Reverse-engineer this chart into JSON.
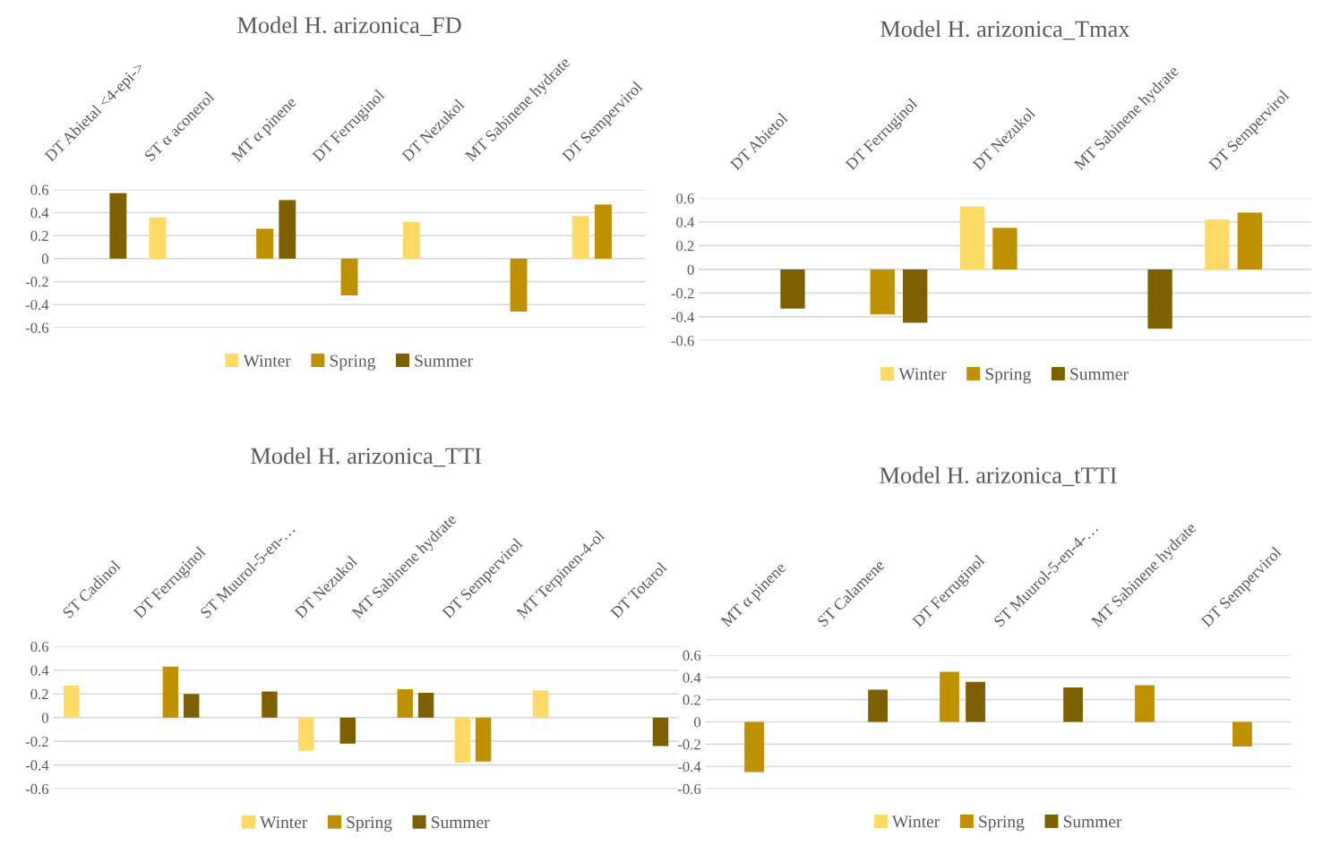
{
  "chart_data": [
    {
      "type": "bar",
      "title": "Model H. arizonica_FD",
      "categories": [
        "DT Abietal <4-epi->",
        "ST α aconerol",
        "MT α pinene",
        "DT Ferruginol",
        "DT Nezukol",
        "MT Sabinene hydrate",
        "DT Sempervirol"
      ],
      "series": [
        {
          "name": "Winter",
          "color": "#ffd966",
          "values": [
            null,
            0.36,
            null,
            null,
            0.32,
            null,
            0.37
          ]
        },
        {
          "name": "Spring",
          "color": "#bf9000",
          "values": [
            null,
            null,
            0.26,
            -0.32,
            null,
            -0.46,
            0.47
          ]
        },
        {
          "name": "Summer",
          "color": "#7f6000",
          "values": [
            0.57,
            null,
            0.51,
            null,
            null,
            null,
            null
          ]
        }
      ],
      "ylim": [
        -0.6,
        0.6
      ],
      "yticks": [
        -0.6,
        -0.4,
        -0.2,
        0,
        0.2,
        0.4,
        0.6
      ],
      "grid": "y",
      "legend": "bottom"
    },
    {
      "type": "bar",
      "title": "Model H. arizonica_Tmax",
      "categories": [
        "DT Abietol",
        "DT Ferruginol",
        "DT Nezukol",
        "MT Sabinene hydrate",
        "DT Sempervirol"
      ],
      "series": [
        {
          "name": "Winter",
          "color": "#ffd966",
          "values": [
            null,
            null,
            0.53,
            null,
            0.42
          ]
        },
        {
          "name": "Spring",
          "color": "#bf9000",
          "values": [
            null,
            -0.38,
            0.35,
            null,
            0.48
          ]
        },
        {
          "name": "Summer",
          "color": "#7f6000",
          "values": [
            -0.33,
            -0.45,
            null,
            -0.5,
            null
          ]
        }
      ],
      "ylim": [
        -0.6,
        0.6
      ],
      "yticks": [
        -0.6,
        -0.4,
        -0.2,
        0,
        0.2,
        0.4,
        0.6
      ],
      "grid": "y",
      "legend": "bottom"
    },
    {
      "type": "bar",
      "title": "Model H. arizonica_TTI",
      "categories": [
        "ST Cadinol",
        "DT Ferruginol",
        "ST Muurol-5-en-…",
        "DT Nezukol",
        "MT Sabinene hydrate",
        "DT Sempervirol",
        "MT Terpinen-4-ol",
        "DT Totarol"
      ],
      "series": [
        {
          "name": "Winter",
          "color": "#ffd966",
          "values": [
            0.27,
            null,
            null,
            -0.28,
            null,
            -0.38,
            0.23,
            null
          ]
        },
        {
          "name": "Spring",
          "color": "#bf9000",
          "values": [
            null,
            0.43,
            null,
            null,
            0.24,
            -0.37,
            null,
            null
          ]
        },
        {
          "name": "Summer",
          "color": "#7f6000",
          "values": [
            null,
            0.2,
            0.22,
            -0.22,
            0.21,
            null,
            null,
            -0.24
          ]
        }
      ],
      "ylim": [
        -0.6,
        0.6
      ],
      "yticks": [
        -0.6,
        -0.4,
        -0.2,
        0,
        0.2,
        0.4,
        0.6
      ],
      "grid": "y",
      "legend": "bottom"
    },
    {
      "type": "bar",
      "title": "Model H. arizonica_tTTI",
      "categories": [
        "MT α pinene",
        "ST Calamene",
        "DT Ferruginol",
        "ST Muurol-5-en-4-…",
        "MT Sabinene hydrate",
        "DT Sempervirol"
      ],
      "series": [
        {
          "name": "Winter",
          "color": "#ffd966",
          "values": [
            null,
            null,
            null,
            null,
            null,
            null
          ]
        },
        {
          "name": "Spring",
          "color": "#bf9000",
          "values": [
            -0.45,
            null,
            0.45,
            null,
            0.33,
            -0.22
          ]
        },
        {
          "name": "Summer",
          "color": "#7f6000",
          "values": [
            null,
            0.29,
            0.36,
            0.31,
            null,
            null
          ]
        }
      ],
      "ylim": [
        -0.6,
        0.6
      ],
      "yticks": [
        -0.6,
        -0.4,
        -0.2,
        0,
        0.2,
        0.4,
        0.6
      ],
      "grid": "y",
      "legend": "bottom"
    }
  ]
}
